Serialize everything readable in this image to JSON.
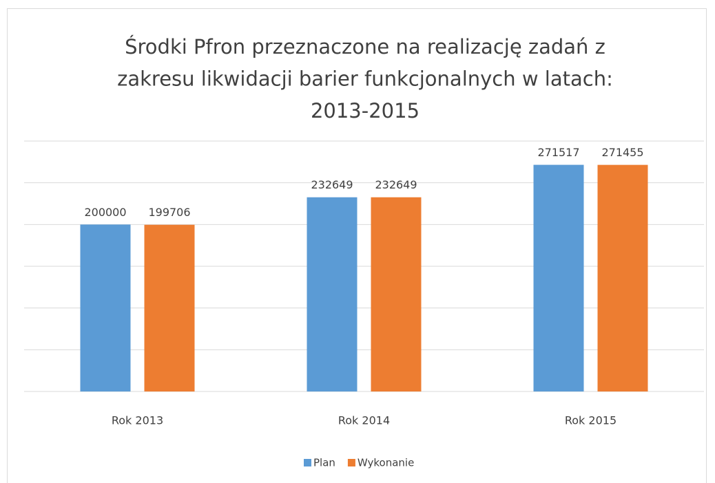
{
  "chart_data": {
    "type": "bar",
    "title": [
      "Środki Pfron przeznaczone na realizację zadań z",
      "zakresu likwidacji barier funkcjonalnych w latach:",
      "2013-2015"
    ],
    "categories": [
      "Rok 2013",
      "Rok 2014",
      "Rok 2015"
    ],
    "series": [
      {
        "name": "Plan",
        "color": "#5b9bd5",
        "values": [
          200000,
          232649,
          271517
        ]
      },
      {
        "name": "Wykonanie",
        "color": "#ed7d31",
        "values": [
          199706,
          232649,
          271455
        ]
      }
    ],
    "ylim": [
      0,
      300000
    ],
    "yticks": [
      0,
      50000,
      100000,
      150000,
      200000,
      250000,
      300000
    ],
    "grid": true,
    "legend": "bottom"
  }
}
